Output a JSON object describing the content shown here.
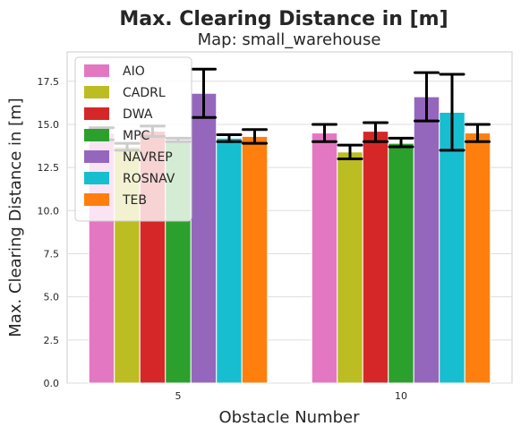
{
  "chart_data": {
    "type": "bar",
    "title": "Max. Clearing Distance in [m]",
    "subtitle": "Map: small_warehouse",
    "xlabel": "Obstacle Number",
    "ylabel": "Max. Clearing Distance in [m]",
    "categories": [
      "5",
      "10"
    ],
    "ylim": [
      0,
      19.2
    ],
    "yticks": [
      "0.0",
      "2.5",
      "5.0",
      "7.5",
      "10.0",
      "12.5",
      "15.0",
      "17.5"
    ],
    "grid": true,
    "legend_position": "top-left",
    "series": [
      {
        "name": "AIO",
        "color": "#e377c2",
        "values": [
          14.5,
          14.5
        ],
        "err_low": [
          14.1,
          14.0
        ],
        "err_high": [
          14.8,
          15.0
        ]
      },
      {
        "name": "CADRL",
        "color": "#bcbd22",
        "values": [
          13.7,
          13.4
        ],
        "err_low": [
          13.5,
          13.0
        ],
        "err_high": [
          13.9,
          13.8
        ]
      },
      {
        "name": "DWA",
        "color": "#d62728",
        "values": [
          14.6,
          14.6
        ],
        "err_low": [
          14.3,
          14.0
        ],
        "err_high": [
          14.9,
          15.1
        ]
      },
      {
        "name": "MPC",
        "color": "#2ca02c",
        "values": [
          14.1,
          13.9
        ],
        "err_low": [
          14.0,
          13.7
        ],
        "err_high": [
          14.2,
          14.2
        ]
      },
      {
        "name": "NAVREP",
        "color": "#9467bd",
        "values": [
          16.8,
          16.6
        ],
        "err_low": [
          15.4,
          15.2
        ],
        "err_high": [
          18.2,
          18.0
        ]
      },
      {
        "name": "ROSNAV",
        "color": "#17becf",
        "values": [
          14.2,
          15.7
        ],
        "err_low": [
          14.0,
          13.5
        ],
        "err_high": [
          14.4,
          17.9
        ]
      },
      {
        "name": "TEB",
        "color": "#ff7f0e",
        "values": [
          14.3,
          14.5
        ],
        "err_low": [
          13.9,
          14.0
        ],
        "err_high": [
          14.7,
          15.0
        ]
      }
    ]
  }
}
